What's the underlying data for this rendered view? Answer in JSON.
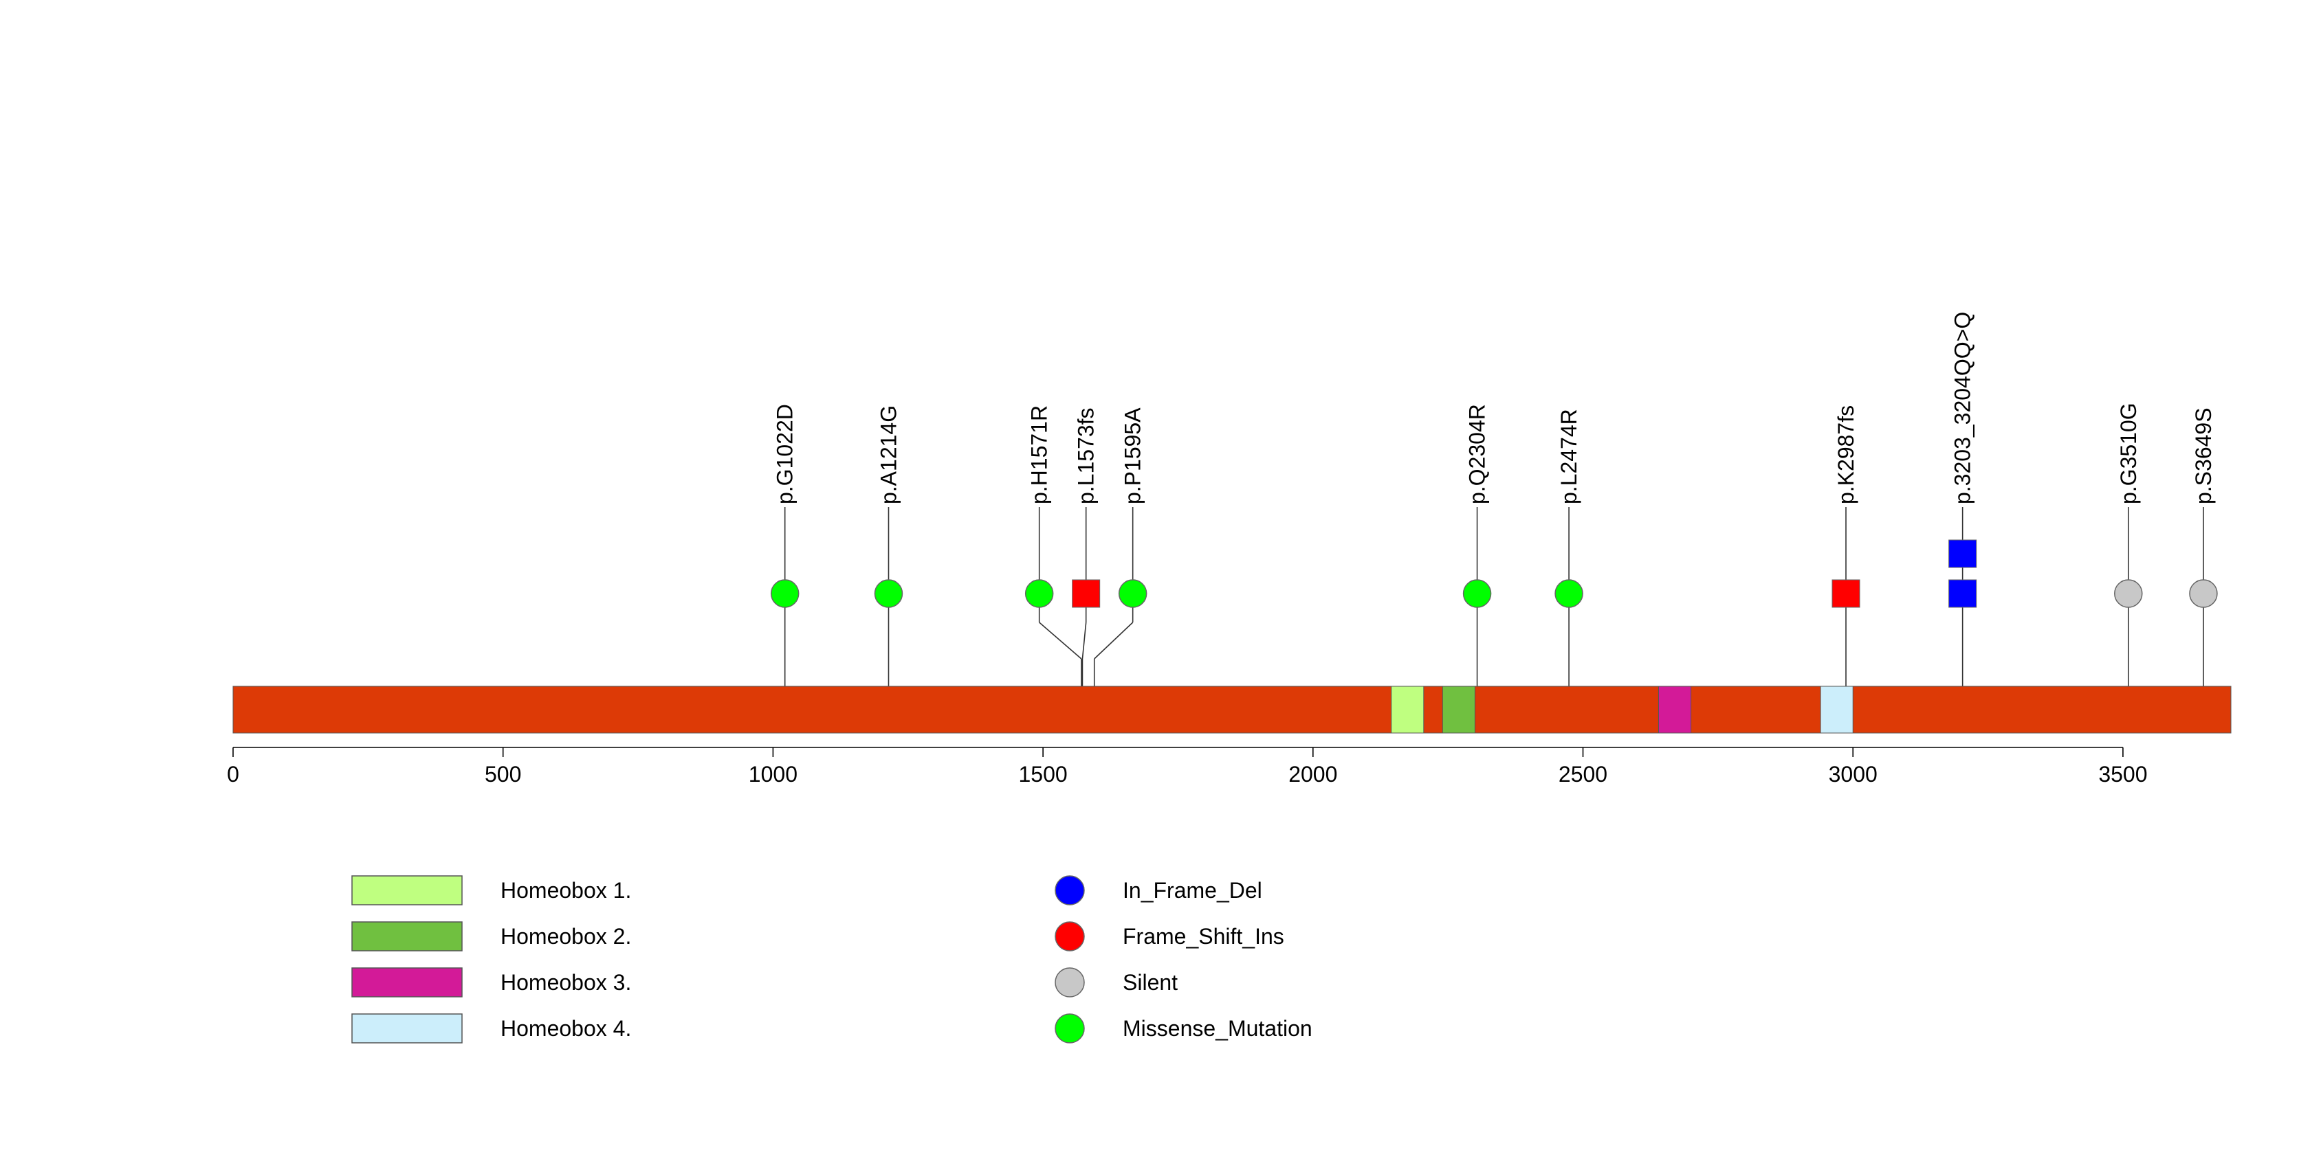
{
  "chart_data": {
    "type": "lollipop",
    "xlim": [
      0,
      3700
    ],
    "x_ticks": [
      0,
      500,
      1000,
      1500,
      2000,
      2500,
      3000,
      3500
    ],
    "x_tick_labels": [
      "0",
      "500",
      "1000",
      "1500",
      "2000",
      "2500",
      "3000",
      "3500"
    ],
    "backbone_color": "#DD3A06",
    "domains": [
      {
        "name": "Homeobox 1.",
        "start": 2145,
        "end": 2205,
        "color": "#BFFF80"
      },
      {
        "name": "Homeobox 2.",
        "start": 2240,
        "end": 2300,
        "color": "#70C040"
      },
      {
        "name": "Homeobox 3.",
        "start": 2640,
        "end": 2700,
        "color": "#D31A98"
      },
      {
        "name": "Homeobox 4.",
        "start": 2940,
        "end": 3000,
        "color": "#CCEEFB"
      }
    ],
    "mutation_types": [
      {
        "name": "In_Frame_Del",
        "color": "#0000FF"
      },
      {
        "name": "Frame_Shift_Ins",
        "color": "#FF0000"
      },
      {
        "name": "Silent",
        "color": "#C8C8C8"
      },
      {
        "name": "Missense_Mutation",
        "color": "#00FF00"
      }
    ],
    "mutations": [
      {
        "label": "p.G1022D",
        "position": 1022,
        "type": "Missense_Mutation",
        "count": 1
      },
      {
        "label": "p.A1214G",
        "position": 1214,
        "type": "Missense_Mutation",
        "count": 1
      },
      {
        "label": "p.H1571R",
        "position": 1571,
        "type": "Missense_Mutation",
        "count": 1
      },
      {
        "label": "p.L1573fs",
        "position": 1573,
        "type": "Frame_Shift_Ins",
        "count": 1
      },
      {
        "label": "p.P1595A",
        "position": 1595,
        "type": "Missense_Mutation",
        "count": 1
      },
      {
        "label": "p.Q2304R",
        "position": 2304,
        "type": "Missense_Mutation",
        "count": 1
      },
      {
        "label": "p.L2474R",
        "position": 2474,
        "type": "Missense_Mutation",
        "count": 1
      },
      {
        "label": "p.K2987fs",
        "position": 2987,
        "type": "Frame_Shift_Ins",
        "count": 1
      },
      {
        "label": "p.3203_3204QQ>Q",
        "position": 3203,
        "type": "In_Frame_Del",
        "count": 2
      },
      {
        "label": "p.G3510G",
        "position": 3510,
        "type": "Silent",
        "count": 1
      },
      {
        "label": "p.S3649S",
        "position": 3649,
        "type": "Silent",
        "count": 1
      }
    ]
  }
}
